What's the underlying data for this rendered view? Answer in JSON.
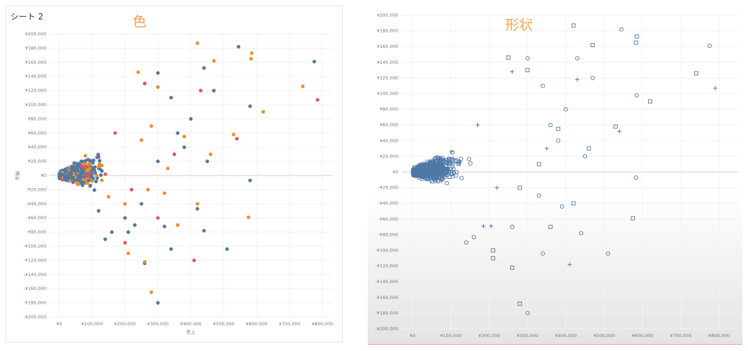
{
  "left": {
    "sheet_title": "シート 2",
    "label": "色"
  },
  "right": {
    "label": "形状"
  },
  "chart_data": [
    {
      "type": "scatter",
      "title": "色",
      "xlabel": "売上",
      "ylabel": "利益",
      "xlim": [
        -30000,
        830000
      ],
      "ylim": [
        -200000,
        200000
      ],
      "x_ticks": [
        "¥0",
        "¥100,000",
        "¥200,000",
        "¥300,000",
        "¥400,000",
        "¥500,000",
        "¥600,000",
        "¥700,000",
        "¥800,000"
      ],
      "y_ticks": [
        "¥200,000",
        "¥180,000",
        "¥160,000",
        "¥140,000",
        "¥120,000",
        "¥100,000",
        "¥80,000",
        "¥60,000",
        "¥40,000",
        "¥20,000",
        "¥0",
        "-¥20,000",
        "-¥40,000",
        "-¥60,000",
        "-¥80,000",
        "-¥100,000",
        "-¥120,000",
        "-¥140,000",
        "-¥160,000",
        "-¥180,000",
        "-¥200,000"
      ],
      "grid": true,
      "encoding": "color",
      "series": [
        {
          "color": "#4e79a7",
          "points": [
            [
              545000,
              182000
            ],
            [
              775000,
              161000
            ],
            [
              580000,
              98000
            ],
            [
              580000,
              -7000
            ],
            [
              510000,
              -104000
            ],
            [
              300000,
              -180000
            ],
            [
              340000,
              -104000
            ],
            [
              440000,
              -78000
            ],
            [
              260000,
              -124000
            ],
            [
              160000,
              -80000
            ],
            [
              140000,
              -90000
            ],
            [
              210000,
              -80000
            ],
            [
              230000,
              -70000
            ],
            [
              320000,
              -72000
            ],
            [
              420000,
              -47000
            ],
            [
              360000,
              60000
            ],
            [
              340000,
              110000
            ],
            [
              300000,
              145000
            ],
            [
              440000,
              152000
            ],
            [
              470000,
              120000
            ],
            [
              400000,
              80000
            ],
            [
              380000,
              40000
            ],
            [
              450000,
              20000
            ],
            [
              300000,
              20000
            ],
            [
              250000,
              -40000
            ],
            [
              200000,
              -60000
            ],
            [
              120000,
              -50000
            ]
          ]
        },
        {
          "color": "#f28e2b",
          "points": [
            [
              420000,
              187000
            ],
            [
              585000,
              173000
            ],
            [
              583000,
              165000
            ],
            [
              470000,
              162000
            ],
            [
              740000,
              126000
            ],
            [
              620000,
              90000
            ],
            [
              530000,
              58000
            ],
            [
              575000,
              -59000
            ],
            [
              260000,
              -122000
            ],
            [
              280000,
              -165000
            ],
            [
              210000,
              -110000
            ],
            [
              360000,
              -70000
            ],
            [
              420000,
              -40000
            ],
            [
              300000,
              125000
            ],
            [
              240000,
              146000
            ],
            [
              380000,
              55000
            ],
            [
              460000,
              30000
            ],
            [
              330000,
              10000
            ],
            [
              270000,
              -20000
            ],
            [
              200000,
              -40000
            ],
            [
              150000,
              -30000
            ],
            [
              320000,
              -25000
            ],
            [
              250000,
              50000
            ],
            [
              280000,
              70000
            ]
          ]
        },
        {
          "color": "#e15759",
          "points": [
            [
              785000,
              107000
            ],
            [
              410000,
              -120000
            ],
            [
              300000,
              -60000
            ],
            [
              200000,
              -95000
            ],
            [
              540000,
              52000
            ],
            [
              260000,
              130000
            ],
            [
              430000,
              120000
            ],
            [
              350000,
              30000
            ],
            [
              220000,
              -20000
            ],
            [
              170000,
              60000
            ]
          ]
        }
      ]
    },
    {
      "type": "scatter",
      "title": "形状",
      "xlim": [
        -30000,
        850000
      ],
      "ylim": [
        -200000,
        200000
      ],
      "x_ticks": [
        "¥0",
        "¥100,000",
        "¥200,000",
        "¥300,000",
        "¥400,000",
        "¥500,000",
        "¥600,000",
        "¥700,000",
        "¥800,000"
      ],
      "y_ticks": [
        "¥200,000",
        "¥180,000",
        "¥160,000",
        "¥140,000",
        "¥120,000",
        "¥100,000",
        "¥80,000",
        "¥60,000",
        "¥40,000",
        "¥20,000",
        "¥0",
        "-¥20,000",
        "-¥40,000",
        "-¥60,000",
        "-¥80,000",
        "-¥100,000",
        "-¥120,000",
        "-¥140,000",
        "-¥160,000",
        "-¥180,000",
        "-¥200,000"
      ],
      "grid": true,
      "encoding": "shape",
      "color": "#4e79a7",
      "series": [
        {
          "shape": "circle",
          "points": [
            [
              545000,
              182000
            ],
            [
              775000,
              161000
            ],
            [
              585000,
              98000
            ],
            [
              583000,
              -7000
            ],
            [
              510000,
              -104000
            ],
            [
              300000,
              -180000
            ],
            [
              340000,
              -104000
            ],
            [
              440000,
              -78000
            ],
            [
              160000,
              -83000
            ],
            [
              140000,
              -90000
            ],
            [
              390000,
              -44000
            ],
            [
              360000,
              60000
            ],
            [
              340000,
              110000
            ],
            [
              300000,
              145000
            ],
            [
              470000,
              120000
            ],
            [
              400000,
              80000
            ],
            [
              380000,
              40000
            ],
            [
              450000,
              20000
            ],
            [
              260000,
              -70000
            ],
            [
              330000,
              -30000
            ],
            [
              430000,
              145000
            ]
          ]
        },
        {
          "shape": "square",
          "points": [
            [
              420000,
              187000
            ],
            [
              585000,
              173000
            ],
            [
              583000,
              165000
            ],
            [
              470000,
              162000
            ],
            [
              740000,
              126000
            ],
            [
              620000,
              90000
            ],
            [
              530000,
              58000
            ],
            [
              575000,
              -59000
            ],
            [
              260000,
              -122000
            ],
            [
              280000,
              -168000
            ],
            [
              210000,
              -110000
            ],
            [
              210000,
              -100000
            ],
            [
              360000,
              -70000
            ],
            [
              420000,
              -40000
            ],
            [
              300000,
              130000
            ],
            [
              250000,
              146000
            ],
            [
              380000,
              55000
            ],
            [
              460000,
              30000
            ],
            [
              330000,
              10000
            ],
            [
              280000,
              -20000
            ]
          ]
        },
        {
          "shape": "cross",
          "points": [
            [
              790000,
              107000
            ],
            [
              410000,
              -118000
            ],
            [
              185000,
              -69000
            ],
            [
              205000,
              -69000
            ],
            [
              540000,
              52000
            ],
            [
              260000,
              128000
            ],
            [
              430000,
              118000
            ],
            [
              350000,
              30000
            ],
            [
              220000,
              -20000
            ],
            [
              170000,
              60000
            ]
          ]
        }
      ]
    }
  ]
}
